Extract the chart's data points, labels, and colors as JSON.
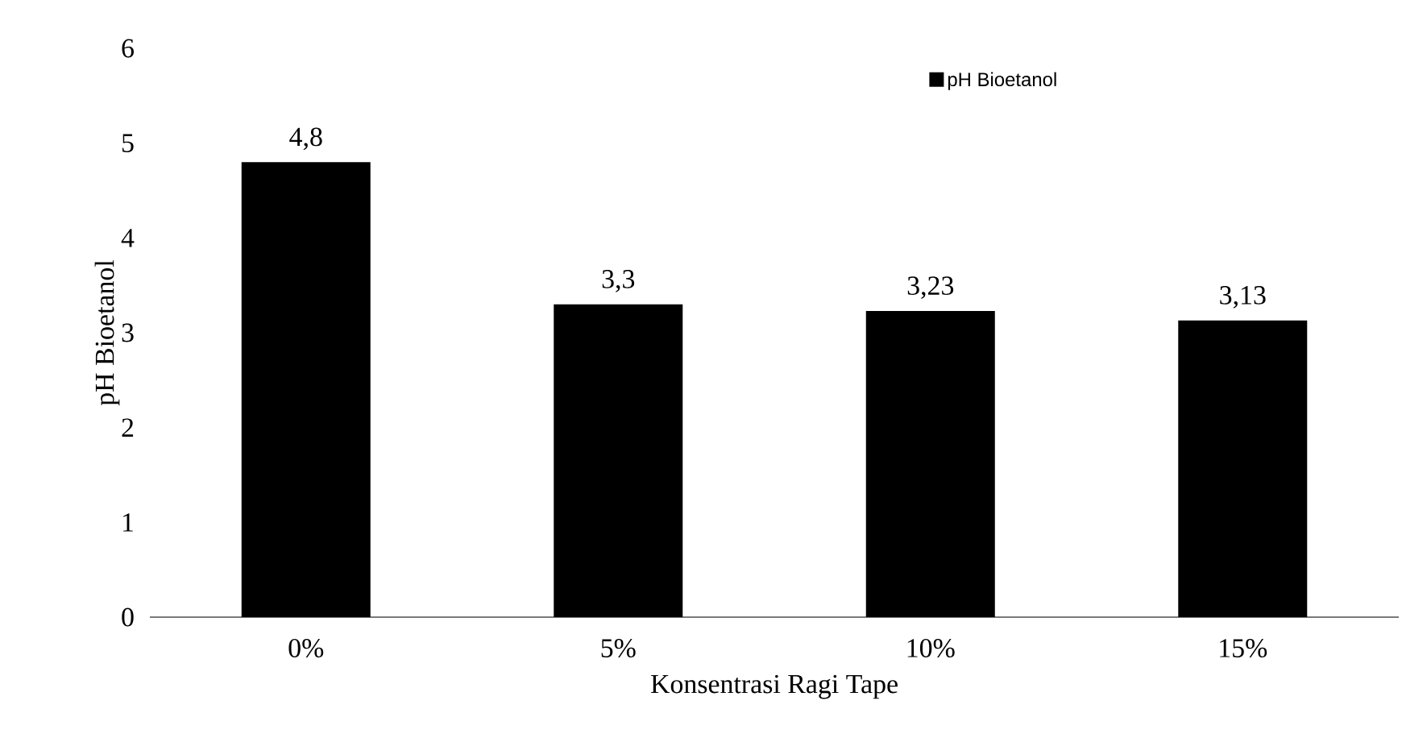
{
  "chart_data": {
    "type": "bar",
    "xlabel": "Konsentrasi Ragi Tape",
    "ylabel": "pH Bioetanol",
    "categories": [
      "0%",
      "5%",
      "10%",
      "15%"
    ],
    "series": [
      {
        "name": "pH Bioetanol",
        "color": "#000000",
        "values": [
          4.8,
          3.3,
          3.23,
          3.13
        ],
        "value_labels": [
          "4,8",
          "3,3",
          "3,23",
          "3,13"
        ]
      }
    ],
    "ylim": [
      0,
      6
    ],
    "yticks": [
      0,
      1,
      2,
      3,
      4,
      5,
      6
    ],
    "legend": "top right"
  }
}
